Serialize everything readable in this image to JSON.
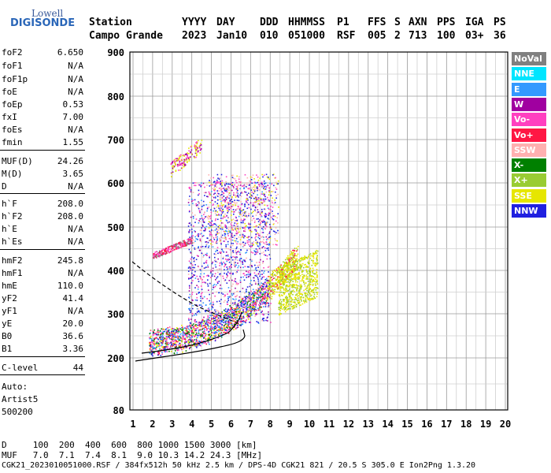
{
  "logo": {
    "line1": "Lowell",
    "line2": "DIGISONDE"
  },
  "header": {
    "labels": [
      "Station",
      "YYYY",
      "DAY",
      "DDD",
      "HHMMSS",
      "P1",
      "FFS",
      "S",
      "AXN",
      "PPS",
      "IGA",
      "PS"
    ],
    "values": [
      "Campo Grande",
      "2023",
      "Jan10",
      "010",
      "051000",
      "RSF",
      "005",
      "2",
      "713",
      "100",
      "03+",
      "36"
    ]
  },
  "params": [
    {
      "name": "foF2",
      "value": "6.650"
    },
    {
      "name": "foF1",
      "value": "N/A"
    },
    {
      "name": "foF1p",
      "value": "N/A"
    },
    {
      "name": "foE",
      "value": "N/A"
    },
    {
      "name": "foEp",
      "value": "0.53"
    },
    {
      "name": "fxI",
      "value": "7.00"
    },
    {
      "name": "foEs",
      "value": "N/A"
    },
    {
      "name": "fmin",
      "value": "1.55"
    },
    {
      "name": "MUF(D)",
      "value": "24.26"
    },
    {
      "name": "M(D)",
      "value": "3.65"
    },
    {
      "name": "D",
      "value": "N/A"
    },
    {
      "name": "h`F",
      "value": "208.0"
    },
    {
      "name": "h`F2",
      "value": "208.0"
    },
    {
      "name": "h`E",
      "value": "N/A"
    },
    {
      "name": "h`Es",
      "value": "N/A"
    },
    {
      "name": "hmF2",
      "value": "245.8"
    },
    {
      "name": "hmF1",
      "value": "N/A"
    },
    {
      "name": "hmE",
      "value": "110.0"
    },
    {
      "name": "yF2",
      "value": "41.4"
    },
    {
      "name": "yF1",
      "value": "N/A"
    },
    {
      "name": "yE",
      "value": "20.0"
    },
    {
      "name": "B0",
      "value": "36.6"
    },
    {
      "name": "B1",
      "value": "3.36"
    },
    {
      "name": "C-level",
      "value": "44"
    }
  ],
  "auto": {
    "line1": "Auto:",
    "line2": "Artist5",
    "line3": "500200"
  },
  "legend": [
    {
      "label": "NoVal",
      "bg": "#808080",
      "fg": "#ffffff"
    },
    {
      "label": "NNE",
      "bg": "#00e5ff",
      "fg": "#ffffff"
    },
    {
      "label": "E",
      "bg": "#3399ff",
      "fg": "#ffffff"
    },
    {
      "label": "W",
      "bg": "#a000a0",
      "fg": "#ffffff"
    },
    {
      "label": "Vo-",
      "bg": "#ff40c0",
      "fg": "#ffffff"
    },
    {
      "label": "Vo+",
      "bg": "#ff1744",
      "fg": "#ffffff"
    },
    {
      "label": "SSW",
      "bg": "#ffb0b0",
      "fg": "#ffffff"
    },
    {
      "label": "X-",
      "bg": "#008000",
      "fg": "#ffffff"
    },
    {
      "label": "X+",
      "bg": "#99cc33",
      "fg": "#ffffff"
    },
    {
      "label": "SSE",
      "bg": "#e6e600",
      "fg": "#ffffff"
    },
    {
      "label": "NNW",
      "bg": "#2020e0",
      "fg": "#ffffff"
    }
  ],
  "chart_data": {
    "type": "scatter",
    "x_ticks": [
      "1",
      "2",
      "3",
      "4",
      "5",
      "6",
      "7",
      "8",
      "9",
      "10",
      "11",
      "12",
      "13",
      "14",
      "15",
      "16",
      "17",
      "18",
      "19",
      "20"
    ],
    "y_ticks": [
      "900",
      "800",
      "700",
      "600",
      "500",
      "400",
      "300",
      "200",
      "80"
    ],
    "xlim": [
      0.9,
      20.1
    ],
    "ylim_note": "virtual height, km",
    "grid": true
  },
  "footer": {
    "row1": "D     100  200  400  600  800 1000 1500 3000 [km]",
    "row2": "MUF   7.0  7.1  7.4  8.1  9.0 10.3 14.2 24.3 [MHz]",
    "row3": "CGK21_2023010051000.RSF / 384fx512h 50 kHz 2.5 km / DPS-4D CGK21 821 / 20.5 S 305.0 E Ion2Png 1.3.20"
  }
}
